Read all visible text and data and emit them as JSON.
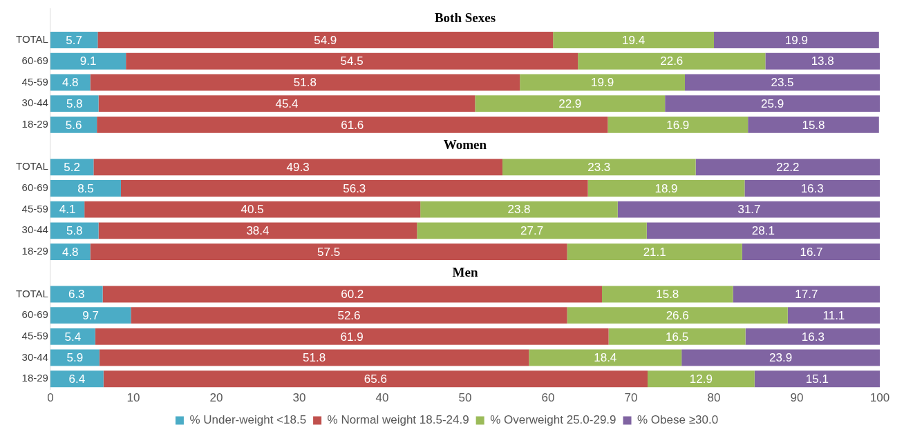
{
  "chart_data": {
    "type": "bar",
    "orientation": "horizontal",
    "stacked": true,
    "data_labels": true,
    "grid": false,
    "legend": "bottom",
    "categories": [
      null,
      "TOTAL",
      "60-69",
      "45-59",
      "30-44",
      "18-29",
      null,
      "TOTAL",
      "60-69",
      "45-59",
      "30-44",
      "18-29",
      null,
      "TOTAL",
      "60-69",
      "45-59",
      "30-44",
      "18-29"
    ],
    "series": [
      {
        "name": "% Under-weight <18.5",
        "color": "#4bacc6",
        "values": [
          null,
          5.7,
          9.1,
          4.8,
          5.8,
          5.6,
          null,
          5.2,
          8.5,
          4.1,
          5.8,
          4.8,
          null,
          6.3,
          9.7,
          5.4,
          5.9,
          6.4
        ]
      },
      {
        "name": "% Normal weight 18.5-24.9",
        "color": "#c0504d",
        "values": [
          null,
          54.9,
          54.5,
          51.8,
          45.4,
          61.6,
          null,
          49.3,
          56.3,
          40.5,
          38.4,
          57.5,
          null,
          60.2,
          52.6,
          61.9,
          51.8,
          65.6
        ]
      },
      {
        "name": "% Overweight 25.0-29.9",
        "color": "#9bbb59",
        "values": [
          null,
          19.4,
          22.6,
          19.9,
          22.9,
          16.9,
          null,
          23.3,
          18.9,
          23.8,
          27.7,
          21.1,
          null,
          15.8,
          26.6,
          16.5,
          18.4,
          12.9
        ]
      },
      {
        "name": "% Obese ≥30.0",
        "color": "#8064a2",
        "values": [
          null,
          19.9,
          13.8,
          23.5,
          25.9,
          15.8,
          null,
          22.2,
          16.3,
          31.7,
          28.1,
          16.7,
          null,
          17.7,
          11.1,
          16.3,
          23.9,
          15.1
        ]
      }
    ],
    "xlim": [
      0,
      100
    ],
    "xticks": [
      0,
      10,
      20,
      30,
      40,
      50,
      60,
      70,
      80,
      90,
      100
    ],
    "annotations": [
      "Both Sexes",
      "Women",
      "Men"
    ]
  }
}
